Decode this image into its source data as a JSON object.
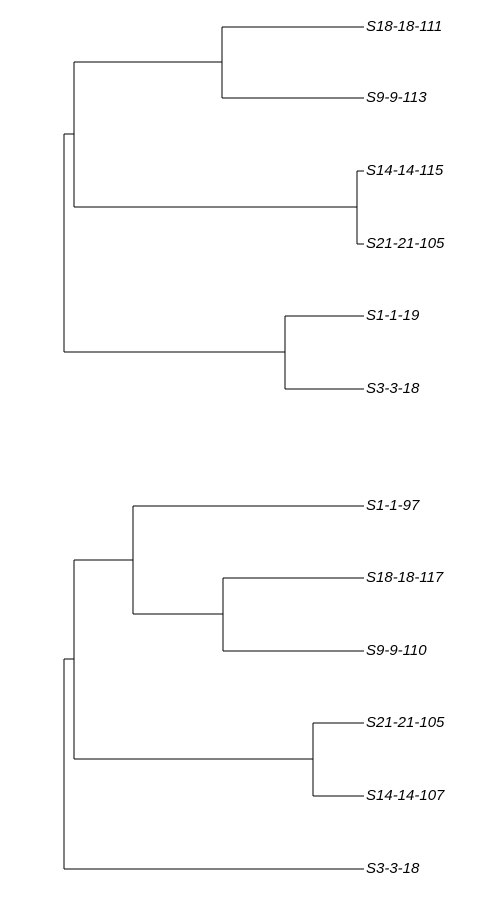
{
  "trees": [
    {
      "leaves": [
        "S18-18-111",
        "S9-9-113",
        "S14-14-115",
        "S21-21-105",
        "S1-1-19",
        "S3-3-18"
      ]
    },
    {
      "leaves": [
        "S1-1-97",
        "S18-18-117",
        "S9-9-110",
        "S21-21-105",
        "S14-14-107",
        "S3-3-18"
      ]
    }
  ],
  "colors": {
    "line": "#000000",
    "label": "#000000",
    "background": "#ffffff"
  }
}
